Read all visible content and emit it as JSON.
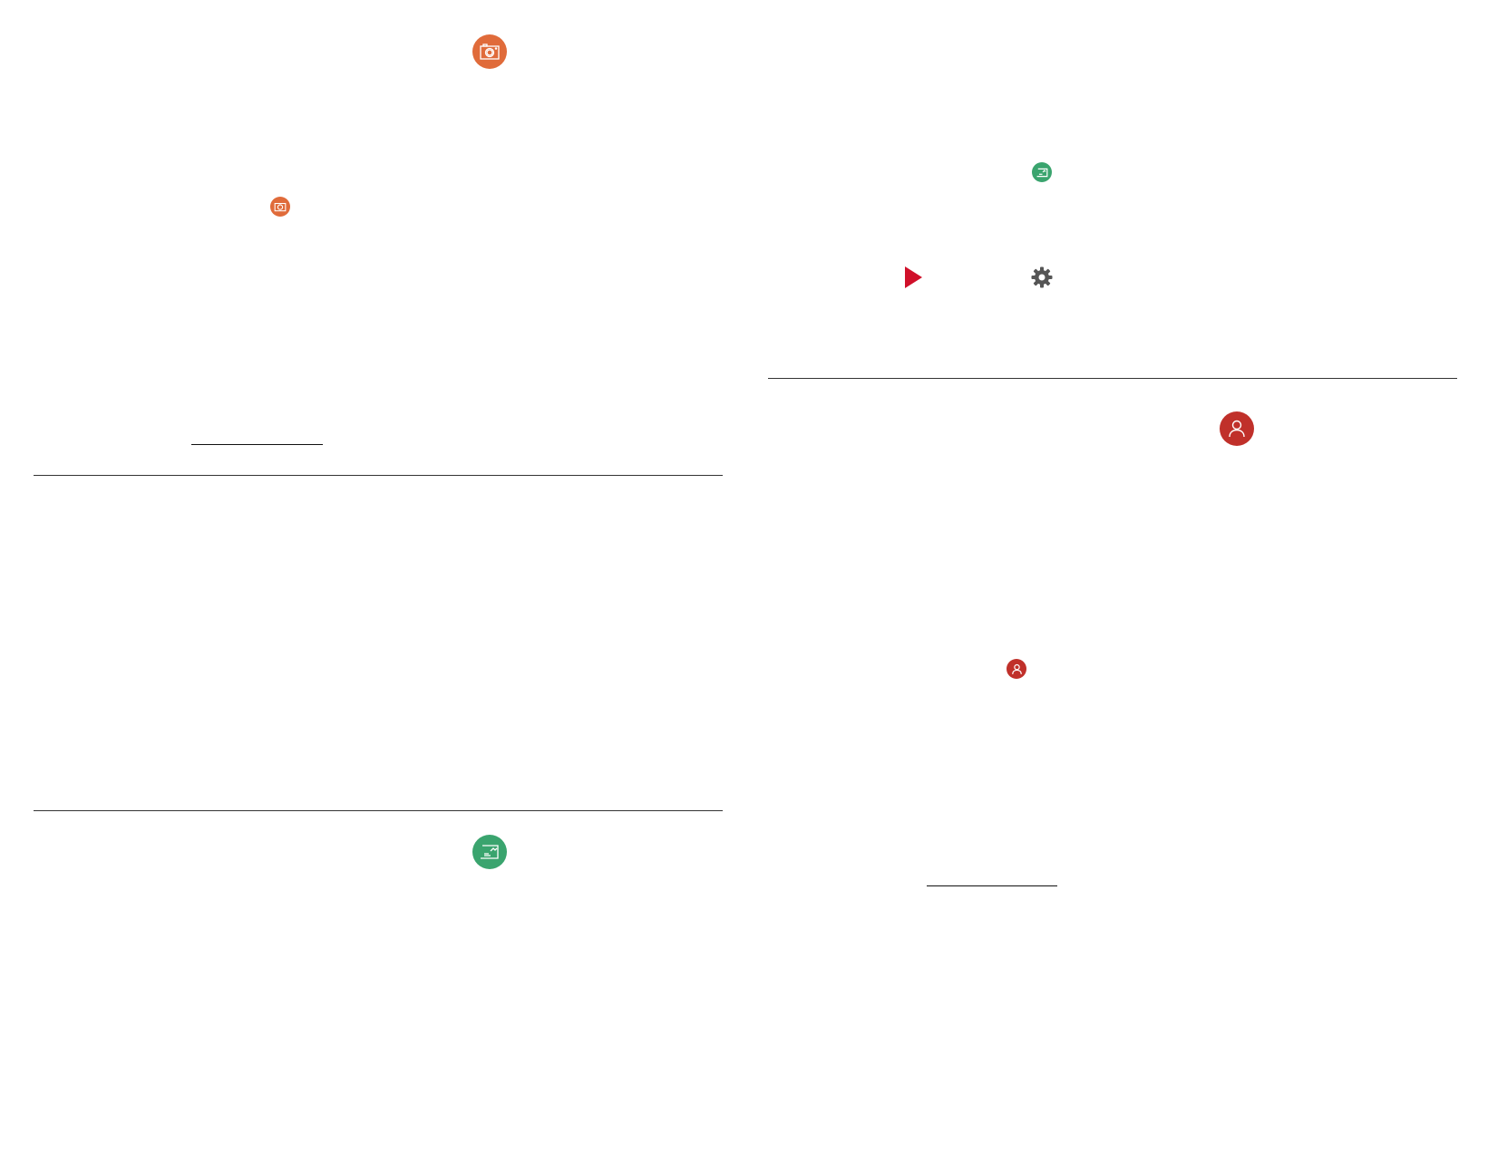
{
  "colors": {
    "camera": "#e06b3a",
    "chart": "#3aa46e",
    "person": "#c0302a",
    "play": "#d0102a",
    "gear": "#555555"
  },
  "icons": {
    "left_top": "camera-icon",
    "left_small": "camera-icon",
    "left_bottom": "presentation-chart-icon",
    "right_small": "presentation-chart-icon",
    "play": "play-icon",
    "gear": "gear-icon",
    "right_big": "person-icon",
    "right_small_person": "person-icon"
  }
}
